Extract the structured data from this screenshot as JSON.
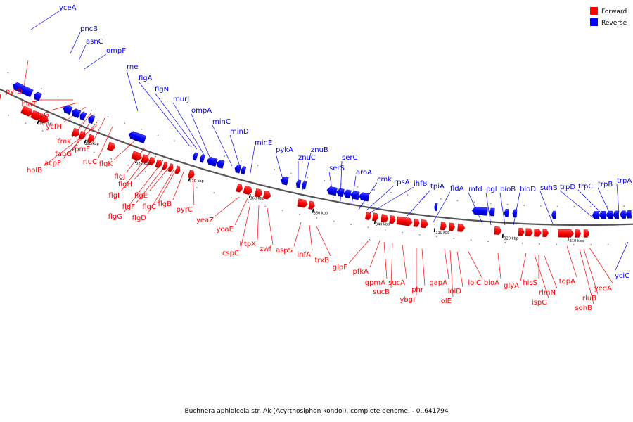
{
  "caption": "Buchnera aphidicola str. Ak (Acyrthosiphon kondoi), complete genome. - 0..641794",
  "legend": [
    {
      "label": "Forward",
      "color": "#ff0000"
    },
    {
      "label": "Reverse",
      "color": "#0000ff"
    }
  ],
  "ticks": [
    "400 kbp",
    "390 kbp",
    "380 kbp",
    "370 kbp",
    "360 kbp",
    "350 kbp",
    "340 kbp",
    "330 kbp",
    "320 kbp",
    "310 kbp"
  ],
  "reverse_genes": [
    "yceA",
    "pncB",
    "asnC",
    "ompF",
    "rne",
    "flgA",
    "flgN",
    "murJ",
    "ompA",
    "minC",
    "minD",
    "minE",
    "pykA",
    "znuC",
    "znuB",
    "serS",
    "serC",
    "aroA",
    "cmk",
    "rpsA",
    "ihfB",
    "tpiA",
    "fldA",
    "mfd",
    "pgl",
    "bioB",
    "bioD",
    "suhB",
    "trpD",
    "trpC",
    "trpB",
    "trpA",
    "yciC"
  ],
  "forward_genes": [
    "pyrD",
    "hinT",
    "ptsG",
    "ycfH",
    "tmk",
    "fabG",
    "rpmF",
    "acpP",
    "holB",
    "rluC",
    "flgK",
    "flgJ",
    "flgI",
    "flgH",
    "flgG",
    "flgF",
    "flgE",
    "flgC",
    "flgD",
    "flgB",
    "pyrC",
    "yeaZ",
    "yoaE",
    "cspC",
    "htpX",
    "zwf",
    "aspS",
    "infA",
    "trxB",
    "glpF",
    "pfkA",
    "gpmA",
    "sucB",
    "sucA",
    "ybgI",
    "phr",
    "gapA",
    "lolE",
    "lolD",
    "lolC",
    "bioA",
    "glyA",
    "ispG",
    "hisS",
    "rlmN",
    "topA",
    "sohB",
    "rluB",
    "yedA"
  ]
}
